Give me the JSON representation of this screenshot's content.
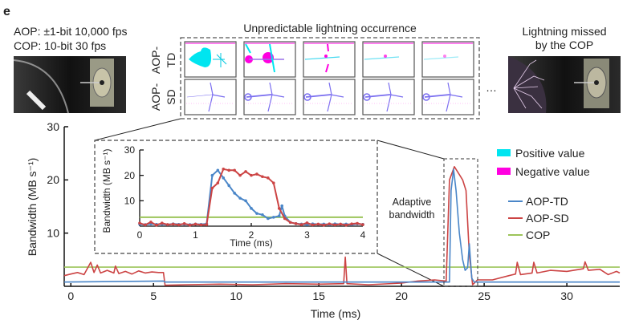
{
  "panel_label": "e",
  "spec_lines": [
    "AOP: ±1-bit 10,000 fps",
    "COP: 10-bit 30 fps"
  ],
  "grid_title": "Unpredictable lightning occurrence",
  "row_labels": [
    {
      "line1": "AOP-",
      "line2": "TD"
    },
    {
      "line1": "AOP-",
      "line2": "SD"
    }
  ],
  "ellipsis": "…",
  "missed_caption": [
    "Lightning missed",
    "by the COP"
  ],
  "annotation": [
    "Adaptive",
    "bandwidth"
  ],
  "legend": {
    "swatches": [
      {
        "label": "Positive value",
        "color": "#00e5f0"
      },
      {
        "label": "Negative value",
        "color": "#ff00e0"
      }
    ],
    "lines": [
      {
        "label": "AOP-TD",
        "color": "#4a86c8"
      },
      {
        "label": "AOP-SD",
        "color": "#cc4444"
      },
      {
        "label": "COP",
        "color": "#9cc45a"
      }
    ]
  },
  "chart_data": [
    {
      "type": "line",
      "xlabel": "Time (ms)",
      "ylabel": "Bandwidth (MB s⁻¹)",
      "xlim": [
        -0.4,
        33.2
      ],
      "ylim": [
        0,
        30
      ],
      "xticks": [
        "0",
        "5",
        "10",
        "15",
        "20",
        "25",
        "30"
      ],
      "yticks": [
        "10",
        "20",
        "30"
      ],
      "series": [
        {
          "name": "AOP-SD",
          "color": "#cc4444",
          "points": [
            [
              -0.4,
              2
            ],
            [
              0,
              2.3
            ],
            [
              0.4,
              2.6
            ],
            [
              0.8,
              2.2
            ],
            [
              1.2,
              4.5
            ],
            [
              1.4,
              2.6
            ],
            [
              1.6,
              4
            ],
            [
              1.8,
              2.5
            ],
            [
              2.2,
              3
            ],
            [
              2.6,
              2.5
            ],
            [
              2.7,
              3.8
            ],
            [
              2.9,
              2.4
            ],
            [
              3.3,
              2.8
            ],
            [
              3.7,
              2.3
            ],
            [
              4.1,
              2.9
            ],
            [
              4.5,
              2.5
            ],
            [
              4.9,
              2.7
            ],
            [
              5.3,
              2.6
            ],
            [
              5.6,
              2.6
            ],
            [
              5.7,
              0.2
            ],
            [
              7,
              0.3
            ],
            [
              9,
              0.4
            ],
            [
              11,
              0.3
            ],
            [
              13,
              0.5
            ],
            [
              15,
              0.4
            ],
            [
              16.5,
              0.5
            ],
            [
              16.6,
              5.5
            ],
            [
              16.7,
              0.5
            ],
            [
              18,
              0.3
            ],
            [
              20,
              0.6
            ],
            [
              21,
              1
            ],
            [
              22,
              1.2
            ],
            [
              22.7,
              1
            ],
            [
              22.9,
              20
            ],
            [
              23.2,
              22.5
            ],
            [
              23.5,
              21
            ],
            [
              23.7,
              20
            ],
            [
              23.9,
              18
            ],
            [
              24.1,
              6
            ],
            [
              24.3,
              0.3
            ],
            [
              24.6,
              1.2
            ],
            [
              25.5,
              1.2
            ],
            [
              26.5,
              2
            ],
            [
              26.9,
              2.3
            ],
            [
              27,
              4.5
            ],
            [
              27.2,
              2.2
            ],
            [
              27.9,
              2.5
            ],
            [
              28,
              4.5
            ],
            [
              28.2,
              2.5
            ],
            [
              29,
              3
            ],
            [
              30,
              2.8
            ],
            [
              31,
              3.3
            ],
            [
              31.1,
              4.6
            ],
            [
              31.3,
              3
            ],
            [
              32,
              3.2
            ],
            [
              32.5,
              2.2
            ],
            [
              33,
              2.8
            ],
            [
              33.2,
              2.5
            ]
          ]
        },
        {
          "name": "AOP-TD",
          "color": "#4a86c8",
          "points": [
            [
              -0.4,
              0.8
            ],
            [
              5.6,
              1
            ],
            [
              5.7,
              0.8
            ],
            [
              22.9,
              0.8
            ],
            [
              23,
              18
            ],
            [
              23.15,
              22
            ],
            [
              23.3,
              18
            ],
            [
              23.5,
              10
            ],
            [
              23.7,
              5
            ],
            [
              23.85,
              3
            ],
            [
              24,
              3.5
            ],
            [
              24.1,
              8
            ],
            [
              24.25,
              1.5
            ],
            [
              24.4,
              0.8
            ],
            [
              33.2,
              0.8
            ]
          ]
        },
        {
          "name": "COP",
          "color": "#9cc45a",
          "points": [
            [
              -0.4,
              3.6
            ],
            [
              33.2,
              3.6
            ]
          ]
        }
      ]
    },
    {
      "type": "line",
      "xlabel": "Time (ms)",
      "ylabel": "Bandwidth (MB s⁻¹)",
      "xlim": [
        0,
        4
      ],
      "ylim": [
        0,
        30
      ],
      "xticks": [
        "0",
        "1",
        "2",
        "3",
        "4"
      ],
      "yticks": [
        "10",
        "20",
        "30"
      ],
      "series": [
        {
          "name": "AOP-TD",
          "color": "#4a86c8",
          "points": [
            [
              0,
              0.8
            ],
            [
              0.1,
              0.6
            ],
            [
              0.2,
              0.9
            ],
            [
              0.3,
              0.7
            ],
            [
              0.4,
              0.8
            ],
            [
              0.5,
              0.6
            ],
            [
              0.6,
              0.9
            ],
            [
              0.7,
              0.7
            ],
            [
              0.8,
              0.8
            ],
            [
              0.9,
              0.6
            ],
            [
              1,
              0.8
            ],
            [
              1.1,
              0.7
            ],
            [
              1.2,
              0.9
            ],
            [
              1.3,
              20
            ],
            [
              1.4,
              22
            ],
            [
              1.5,
              19
            ],
            [
              1.6,
              16
            ],
            [
              1.7,
              13
            ],
            [
              1.8,
              11
            ],
            [
              1.9,
              10
            ],
            [
              2,
              7
            ],
            [
              2.1,
              5
            ],
            [
              2.2,
              4.5
            ],
            [
              2.3,
              3
            ],
            [
              2.4,
              3.5
            ],
            [
              2.5,
              4
            ],
            [
              2.55,
              8
            ],
            [
              2.6,
              4
            ],
            [
              2.7,
              1.5
            ],
            [
              2.8,
              1
            ],
            [
              2.9,
              0.8
            ],
            [
              3,
              0.6
            ],
            [
              3.1,
              0.9
            ],
            [
              3.2,
              0.7
            ],
            [
              3.3,
              0.8
            ],
            [
              3.4,
              0.6
            ],
            [
              3.5,
              0.9
            ],
            [
              3.6,
              0.7
            ],
            [
              3.7,
              0.8
            ],
            [
              3.8,
              0.6
            ],
            [
              3.9,
              0.9
            ],
            [
              4,
              0.7
            ]
          ]
        },
        {
          "name": "AOP-SD",
          "color": "#cc4444",
          "points": [
            [
              0,
              1.2
            ],
            [
              0.1,
              0.5
            ],
            [
              0.2,
              1.6
            ],
            [
              0.3,
              0.4
            ],
            [
              0.4,
              1.2
            ],
            [
              0.5,
              0.6
            ],
            [
              0.6,
              0.8
            ],
            [
              0.7,
              0.5
            ],
            [
              0.8,
              1
            ],
            [
              0.9,
              0.4
            ],
            [
              1,
              0.8
            ],
            [
              1.1,
              0.5
            ],
            [
              1.2,
              0.6
            ],
            [
              1.3,
              15
            ],
            [
              1.4,
              17
            ],
            [
              1.5,
              22.5
            ],
            [
              1.6,
              22
            ],
            [
              1.7,
              22
            ],
            [
              1.8,
              20
            ],
            [
              1.9,
              21.5
            ],
            [
              2,
              20
            ],
            [
              2.1,
              20.5
            ],
            [
              2.2,
              19.5
            ],
            [
              2.3,
              19
            ],
            [
              2.4,
              17
            ],
            [
              2.5,
              7
            ],
            [
              2.6,
              3
            ],
            [
              2.7,
              1.5
            ],
            [
              2.8,
              1
            ],
            [
              2.9,
              0.6
            ],
            [
              3,
              1.3
            ],
            [
              3.1,
              0.5
            ],
            [
              3.2,
              0.8
            ],
            [
              3.3,
              0.4
            ],
            [
              3.4,
              0.9
            ],
            [
              3.5,
              0.5
            ],
            [
              3.6,
              0.8
            ],
            [
              3.7,
              0.4
            ],
            [
              3.8,
              0.9
            ],
            [
              3.9,
              1.1
            ],
            [
              4,
              0.6
            ]
          ]
        },
        {
          "name": "COP",
          "color": "#9cc45a",
          "points": [
            [
              0,
              3.5
            ],
            [
              4,
              3.5
            ]
          ]
        }
      ]
    }
  ]
}
